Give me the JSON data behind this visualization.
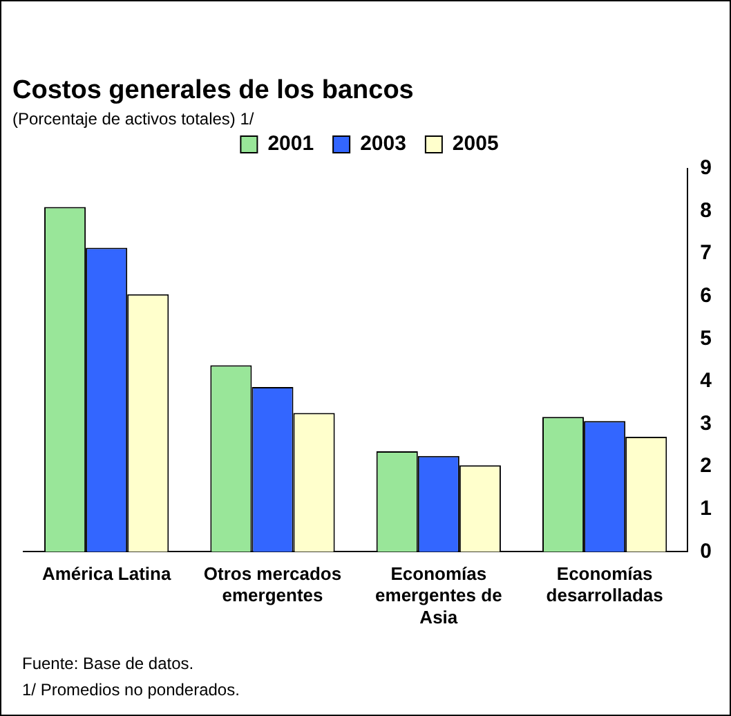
{
  "chart_data": {
    "type": "bar",
    "title": "Costos generales de los bancos",
    "subtitle": "(Porcentaje de activos totales) 1/",
    "categories": [
      "América Latina",
      "Otros mercados emergentes",
      "Economías emergentes de Asia",
      "Economías desarrolladas"
    ],
    "series": [
      {
        "name": "2001",
        "color": "#99e699",
        "values": [
          8.1,
          4.38,
          2.36,
          3.17
        ]
      },
      {
        "name": "2003",
        "color": "#3366ff",
        "values": [
          7.14,
          3.87,
          2.25,
          3.07
        ]
      },
      {
        "name": "2005",
        "color": "#ffffcc",
        "values": [
          6.05,
          3.26,
          2.03,
          2.7
        ]
      }
    ],
    "ylim": [
      0,
      9
    ],
    "yticks": [
      0,
      1,
      2,
      3,
      4,
      5,
      6,
      7,
      8,
      9
    ],
    "grid": false,
    "legend": "top",
    "annotations": [
      "Fuente: Base de datos.",
      "1/ Promedios no ponderados."
    ]
  }
}
